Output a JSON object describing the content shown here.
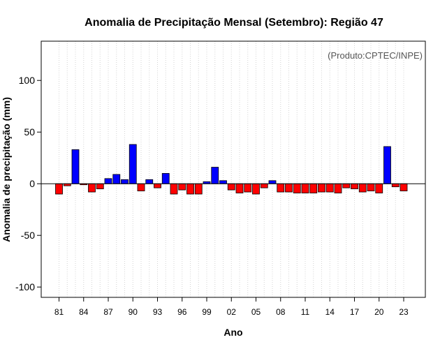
{
  "chart_data": {
    "type": "bar",
    "title": "Anomalia de Precipitação Mensal (Setembro): Região 47",
    "xlabel": "Ano",
    "ylabel": "Anomalia de precipitação (mm)",
    "credit": "(Produto:CPTEC/INPE)",
    "ylim": [
      -110,
      138
    ],
    "yticks": [
      -100,
      -50,
      0,
      50,
      100
    ],
    "ytick_labels": [
      "-100",
      "-50",
      "0",
      "50",
      "100"
    ],
    "x_tick_labels": [
      "81",
      "84",
      "87",
      "90",
      "93",
      "96",
      "99",
      "02",
      "05",
      "08",
      "11",
      "14",
      "17",
      "20",
      "23"
    ],
    "x_tick_years": [
      1981,
      1984,
      1987,
      1990,
      1993,
      1996,
      1999,
      2002,
      2005,
      2008,
      2011,
      2014,
      2017,
      2020,
      2023
    ],
    "grid": "vertical dotted",
    "positive_color": "#0000ff",
    "negative_color": "#ff0000",
    "categories": [
      1981,
      1982,
      1983,
      1984,
      1985,
      1986,
      1987,
      1988,
      1989,
      1990,
      1991,
      1992,
      1993,
      1994,
      1995,
      1996,
      1997,
      1998,
      1999,
      2000,
      2001,
      2002,
      2003,
      2004,
      2005,
      2006,
      2007,
      2008,
      2009,
      2010,
      2011,
      2012,
      2013,
      2014,
      2015,
      2016,
      2017,
      2018,
      2019,
      2020,
      2021,
      2022,
      2023
    ],
    "values": [
      -10,
      -2,
      33,
      -1,
      -8,
      -5,
      5,
      9,
      4,
      38,
      -7,
      4,
      -4,
      10,
      -10,
      -6,
      -10,
      -10,
      2,
      16,
      3,
      -6,
      -9,
      -8,
      -10,
      -4,
      3,
      -8,
      -8,
      -9,
      -9,
      -9,
      -8,
      -8,
      -9,
      -4,
      -5,
      -8,
      -7,
      -9,
      36,
      -3,
      -7
    ]
  }
}
